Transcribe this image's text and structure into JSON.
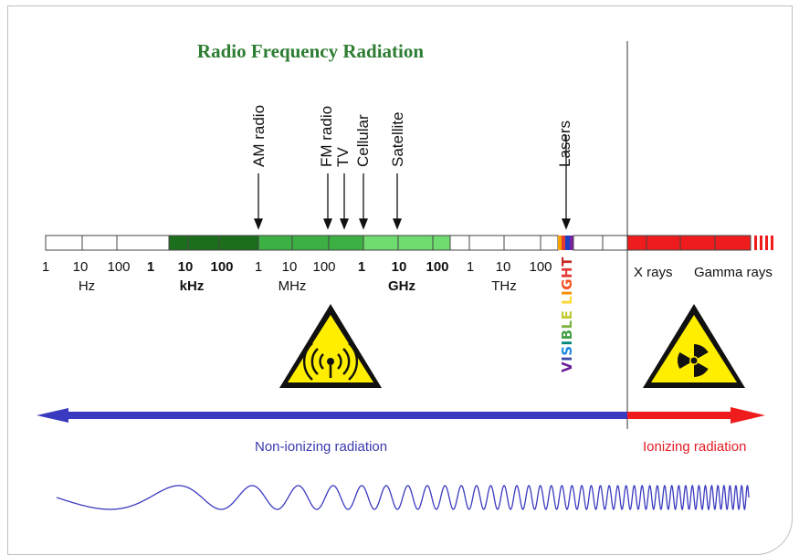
{
  "title": "Radio Frequency Radiation",
  "applications": [
    {
      "label": "AM radio"
    },
    {
      "label": "FM radio"
    },
    {
      "label": "TV"
    },
    {
      "label": "Cellular"
    },
    {
      "label": "Satellite"
    },
    {
      "label": "Lasers"
    }
  ],
  "ticks": [
    {
      "t": "1",
      "bold": false
    },
    {
      "t": "10",
      "bold": false
    },
    {
      "t": "100",
      "bold": false
    },
    {
      "t": "1",
      "bold": true
    },
    {
      "t": "10",
      "bold": true
    },
    {
      "t": "100",
      "bold": true
    },
    {
      "t": "1",
      "bold": false
    },
    {
      "t": "10",
      "bold": false
    },
    {
      "t": "100",
      "bold": false
    },
    {
      "t": "1",
      "bold": true
    },
    {
      "t": "10",
      "bold": true
    },
    {
      "t": "100",
      "bold": true
    },
    {
      "t": "1",
      "bold": false
    },
    {
      "t": "10",
      "bold": false
    },
    {
      "t": "100",
      "bold": false
    }
  ],
  "units": [
    {
      "t": "Hz",
      "bold": false
    },
    {
      "t": "kHz",
      "bold": true
    },
    {
      "t": "MHz",
      "bold": false
    },
    {
      "t": "GHz",
      "bold": true
    },
    {
      "t": "THz",
      "bold": false
    }
  ],
  "visible_light": {
    "letters": [
      "V",
      "I",
      "S",
      "I",
      "B",
      "L",
      "E",
      " ",
      "L",
      "I",
      "G",
      "H",
      "T"
    ],
    "colors": [
      "#6a1b9a",
      "#3949ab",
      "#1e88e5",
      "#00897b",
      "#43a047",
      "#7cb342",
      "#c0ca33",
      "#ffffff",
      "#fdd835",
      "#fb8c00",
      "#f4511e",
      "#e53935",
      "#c62828"
    ]
  },
  "x_rays_label": "X rays",
  "gamma_rays_label": "Gamma rays",
  "non_ionizing_label": "Non-ionizing radiation",
  "ionizing_label": "Ionizing radiation",
  "colors": {
    "title_green": "#2e7d32",
    "dark_green": "#1b6e1b",
    "mid_green": "#3cb043",
    "light_green": "#6fdc6f",
    "red": "#ee1c1c",
    "blue": "#3a3ac0",
    "caption_blue": "#3a3ab0",
    "caption_red": "#e31b23",
    "warning_yellow": "#ffee00"
  },
  "icons": {
    "non_ionizing_sign": "radio-wave-warning-icon",
    "ionizing_sign": "radiation-trefoil-warning-icon"
  }
}
